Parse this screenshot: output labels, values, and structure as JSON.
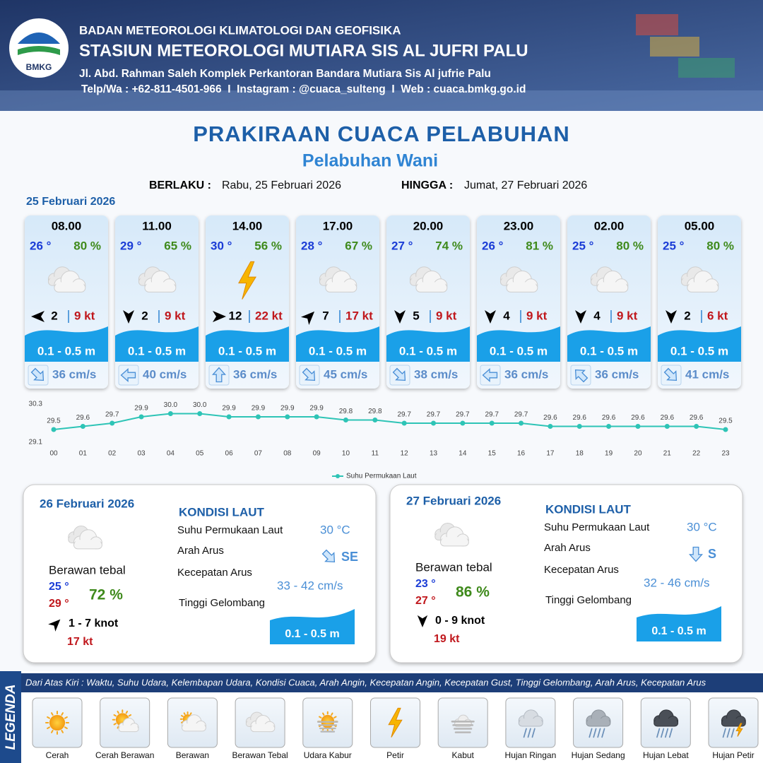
{
  "header": {
    "logo": "BMKG",
    "org": "BADAN METEOROLOGI KLIMATOLOGI DAN GEOFISIKA",
    "station": "STASIUN METEOROLOGI MUTIARA SIS AL JUFRI PALU",
    "address": "Jl. Abd. Rahman Saleh Komplek Perkantoran Bandara Mutiara Sis Al jufrie Palu",
    "contact": "Telp/Wa : +62-811-4501-966  I  Instagram : @cuaca_sulteng  I  Web : cuaca.bmkg.go.id"
  },
  "title": "PRAKIRAAN CUACA PELABUHAN",
  "subtitle": "Pelabuhan Wani",
  "valid": {
    "from_label": "BERLAKU :",
    "from": "Rabu, 25 Februari 2026",
    "to_label": "HINGGA :",
    "to": "Jumat, 27 Februari 2026"
  },
  "day1": {
    "date": "25 Februari 2026",
    "slots": [
      {
        "time": "08.00",
        "temp": "26 °",
        "humidity": "80 %",
        "weather": "Berawan Tebal",
        "wind_dir": 270,
        "wind": "2",
        "gust": "9 kt",
        "wave": "0.1 - 0.5 m",
        "current_dir": 135,
        "current": "36 cm/s"
      },
      {
        "time": "11.00",
        "temp": "29 °",
        "humidity": "65 %",
        "weather": "Berawan Tebal",
        "wind_dir": 180,
        "wind": "2",
        "gust": "9 kt",
        "wave": "0.1 - 0.5 m",
        "current_dir": 270,
        "current": "40 cm/s"
      },
      {
        "time": "14.00",
        "temp": "30 °",
        "humidity": "56 %",
        "weather": "Petir",
        "wind_dir": 90,
        "wind": "12",
        "gust": "22 kt",
        "wave": "0.1 - 0.5 m",
        "current_dir": 0,
        "current": "36 cm/s"
      },
      {
        "time": "17.00",
        "temp": "28 °",
        "humidity": "67 %",
        "weather": "Berawan Tebal",
        "wind_dir": 45,
        "wind": "7",
        "gust": "17 kt",
        "wave": "0.1 - 0.5 m",
        "current_dir": 135,
        "current": "45 cm/s"
      },
      {
        "time": "20.00",
        "temp": "27 °",
        "humidity": "74 %",
        "weather": "Berawan Tebal",
        "wind_dir": 180,
        "wind": "5",
        "gust": "9 kt",
        "wave": "0.1 - 0.5 m",
        "current_dir": 135,
        "current": "38 cm/s"
      },
      {
        "time": "23.00",
        "temp": "26 °",
        "humidity": "81 %",
        "weather": "Berawan Tebal",
        "wind_dir": 180,
        "wind": "4",
        "gust": "9 kt",
        "wave": "0.1 - 0.5 m",
        "current_dir": 270,
        "current": "36 cm/s"
      },
      {
        "time": "02.00",
        "temp": "25 °",
        "humidity": "80 %",
        "weather": "Berawan Tebal",
        "wind_dir": 180,
        "wind": "4",
        "gust": "9 kt",
        "wave": "0.1 - 0.5 m",
        "current_dir": 315,
        "current": "36 cm/s"
      },
      {
        "time": "05.00",
        "temp": "25 °",
        "humidity": "80 %",
        "weather": "Berawan Tebal",
        "wind_dir": 180,
        "wind": "2",
        "gust": "6 kt",
        "wave": "0.1 - 0.5 m",
        "current_dir": 135,
        "current": "41 cm/s"
      }
    ]
  },
  "chart_data": {
    "type": "line",
    "categories": [
      "00",
      "01",
      "02",
      "03",
      "04",
      "05",
      "06",
      "07",
      "08",
      "09",
      "10",
      "11",
      "12",
      "13",
      "14",
      "15",
      "16",
      "17",
      "18",
      "19",
      "20",
      "21",
      "22",
      "23"
    ],
    "series": [
      {
        "name": "Suhu Permukaan Laut",
        "color": "#2ec4b6",
        "values": [
          29.5,
          29.6,
          29.7,
          29.9,
          30.0,
          30.0,
          29.9,
          29.9,
          29.9,
          29.9,
          29.8,
          29.8,
          29.7,
          29.7,
          29.7,
          29.7,
          29.7,
          29.6,
          29.6,
          29.6,
          29.6,
          29.6,
          29.6,
          29.5
        ],
        "value_labels": [
          "29.5",
          "29.6",
          "29.7",
          "29.9",
          "30.0",
          "30.0",
          "29.9",
          "29.9",
          "29.9",
          "29.9",
          "29.8",
          "29.8",
          "29.7",
          "29.7",
          "29.7",
          "29.7",
          "29.7",
          "29.6",
          "29.6",
          "29.6",
          "29.6",
          "29.6",
          "29.6",
          "29.5"
        ]
      }
    ],
    "ylim": [
      29.1,
      30.3
    ],
    "yticks": [
      29.1,
      30.3
    ],
    "grid": false,
    "legend": "bottom"
  },
  "days": [
    {
      "date": "26 Februari 2026",
      "weather": "Berawan tebal",
      "temp_min": "25 °",
      "temp_max": "29 °",
      "humidity": "72 %",
      "wind_dir": 45,
      "wind": "1 - 7 knot",
      "gust": "17 kt",
      "sea_title": "KONDISI LAUT",
      "sst_label": "Suhu Permukaan Laut",
      "sst": "30 °C",
      "current_dir_label": "Arah Arus",
      "current_dir": "SE",
      "current_speed_label": "Kecepatan Arus",
      "current_speed": "33 - 42 cm/s",
      "wave_label": "Tinggi Gelombang",
      "wave": "0.1 - 0.5 m"
    },
    {
      "date": "27 Februari 2026",
      "weather": "Berawan tebal",
      "temp_min": "23 °",
      "temp_max": "27 °",
      "humidity": "86 %",
      "wind_dir": 180,
      "wind": "0 - 9 knot",
      "gust": "19 kt",
      "sea_title": "KONDISI LAUT",
      "sst_label": "Suhu Permukaan Laut",
      "sst": "30 °C",
      "current_dir_label": "Arah Arus",
      "current_dir": "S",
      "current_speed_label": "Kecepatan Arus",
      "current_speed": "32 - 46 cm/s",
      "wave_label": "Tinggi Gelombang",
      "wave": "0.1 - 0.5 m"
    }
  ],
  "legend": {
    "title": "LEGENDA",
    "description": "Dari Atas Kiri : Waktu, Suhu Udara, Kelembapan Udara, Kondisi Cuaca, Arah Angin, Kecepatan Angin, Kecepatan Gust, Tinggi Gelombang, Arah Arus, Kecepatan Arus",
    "items": [
      "Cerah",
      "Cerah Berawan",
      "Berawan",
      "Berawan Tebal",
      "Udara Kabur",
      "Petir",
      "Kabut",
      "Hujan Ringan",
      "Hujan Sedang",
      "Hujan Lebat",
      "Hujan Petir"
    ]
  }
}
